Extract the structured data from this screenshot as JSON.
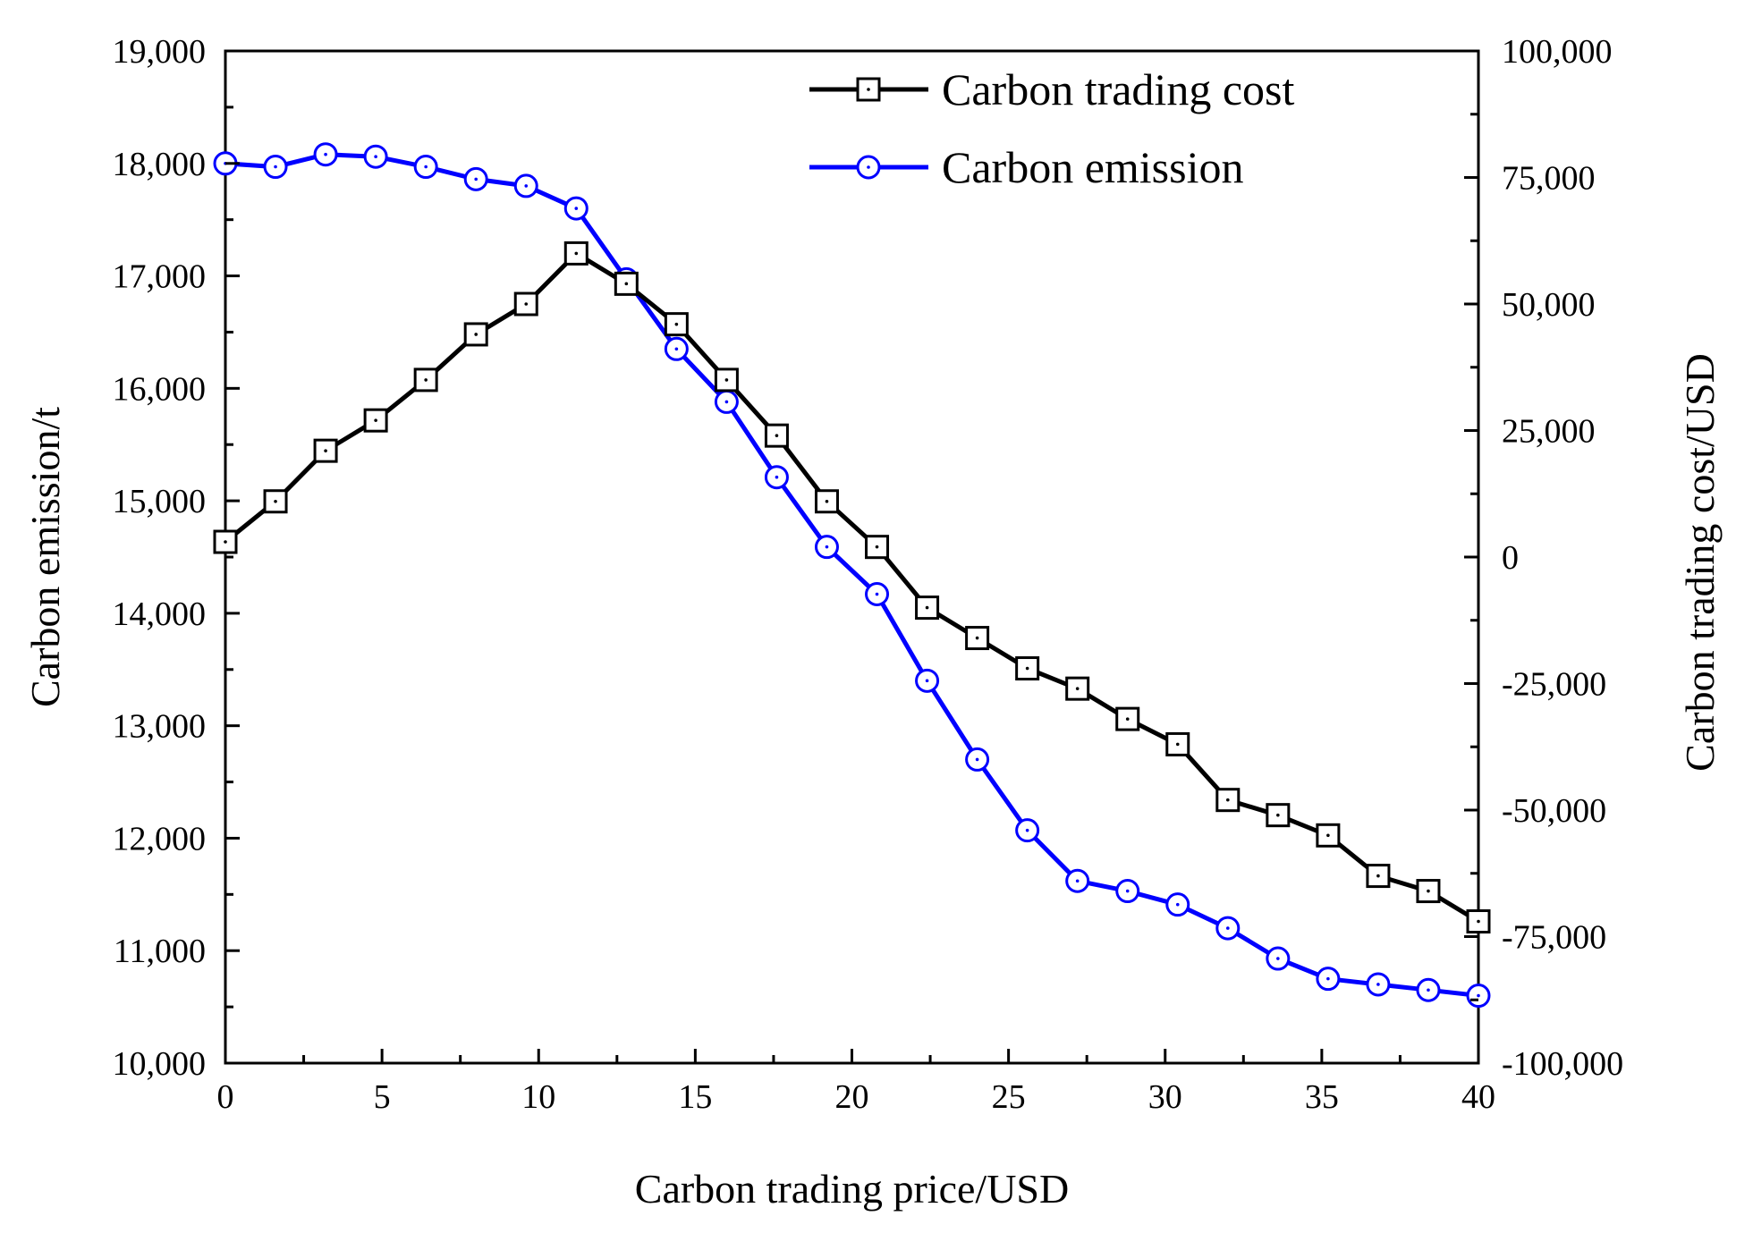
{
  "chart_data": {
    "type": "line",
    "xlabel": "Carbon trading price/USD",
    "ylabel_left": "Carbon emission/t",
    "ylabel_right": "Carbon trading cost/USD",
    "xlim": [
      0,
      40
    ],
    "ylim_left": [
      10000,
      19000
    ],
    "ylim_right": [
      -100000,
      100000
    ],
    "x_ticks": [
      0,
      5,
      10,
      15,
      20,
      25,
      30,
      35,
      40
    ],
    "x_tick_labels": [
      "0",
      "5",
      "10",
      "15",
      "20",
      "25",
      "30",
      "35",
      "40"
    ],
    "y_left_ticks": [
      10000,
      11000,
      12000,
      13000,
      14000,
      15000,
      16000,
      17000,
      18000,
      19000
    ],
    "y_left_tick_labels": [
      "10,000",
      "11,000",
      "12,000",
      "13,000",
      "14,000",
      "15,000",
      "16,000",
      "17,000",
      "18,000",
      "19,000"
    ],
    "y_right_ticks": [
      -100000,
      -75000,
      -50000,
      -25000,
      0,
      25000,
      50000,
      75000,
      100000
    ],
    "y_right_tick_labels": [
      "-100,000",
      "-75,000",
      "-50,000",
      "-25,000",
      "0",
      "25,000",
      "50,000",
      "75,000",
      "100,000"
    ],
    "x": [
      0,
      1.6,
      3.2,
      4.8,
      6.4,
      8.0,
      9.6,
      11.2,
      12.8,
      14.4,
      16.0,
      17.6,
      19.2,
      20.8,
      22.4,
      24.0,
      25.6,
      27.2,
      28.8,
      30.4,
      32.0,
      33.6,
      35.2,
      36.8,
      38.4,
      40.0
    ],
    "series": [
      {
        "name": "Carbon trading cost",
        "axis": "right",
        "color": "#000000",
        "marker": "square",
        "values": [
          3000,
          11000,
          21000,
          27000,
          35000,
          44000,
          50000,
          60000,
          54000,
          46000,
          35000,
          24000,
          11000,
          2000,
          -10000,
          -16000,
          -22000,
          -26000,
          -32000,
          -37000,
          -48000,
          -51000,
          -55000,
          -63000,
          -66000,
          -72000
        ]
      },
      {
        "name": "Carbon emission",
        "axis": "left",
        "color": "#0000ff",
        "marker": "circle",
        "values": [
          18000,
          17970,
          18080,
          18060,
          17970,
          17860,
          17800,
          17600,
          16970,
          16350,
          15880,
          15210,
          14590,
          14170,
          13400,
          12700,
          12070,
          11620,
          11530,
          11410,
          11200,
          10930,
          10750,
          10700,
          10650,
          10600
        ]
      }
    ],
    "legend_position": "top-right"
  }
}
